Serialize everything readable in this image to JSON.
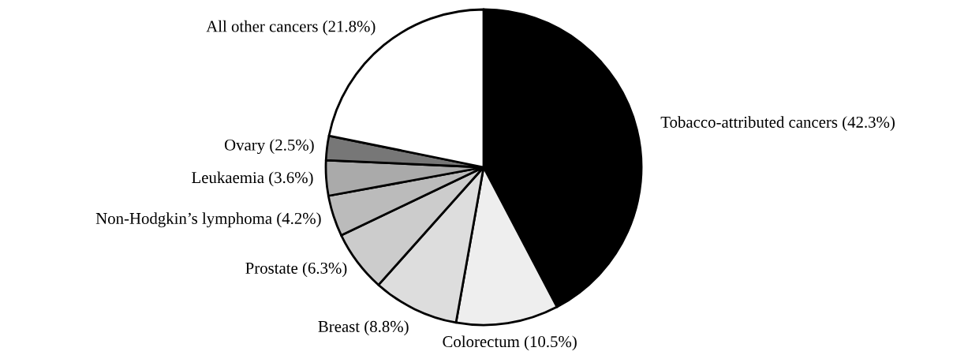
{
  "chart_data": {
    "type": "pie",
    "categories": [
      "Tobacco-attributed cancers",
      "Colorectum",
      "Breast",
      "Prostate",
      "Non-Hodgkin’s lymphoma",
      "Leukaemia",
      "Ovary",
      "All other cancers"
    ],
    "values": [
      42.3,
      10.5,
      8.8,
      6.3,
      4.2,
      3.6,
      2.5,
      21.8
    ],
    "value_labels": [
      "(42.3%)",
      "(10.5%)",
      "(8.8%)",
      "(6.3%)",
      "(4.2%)",
      "(3.6%)",
      "(2.5%)",
      "(21.8%)"
    ],
    "colors": [
      "#000000",
      "#eeeeee",
      "#dddddd",
      "#cccccc",
      "#bbbbbb",
      "#aaaaaa",
      "#777777",
      "#ffffff"
    ]
  }
}
